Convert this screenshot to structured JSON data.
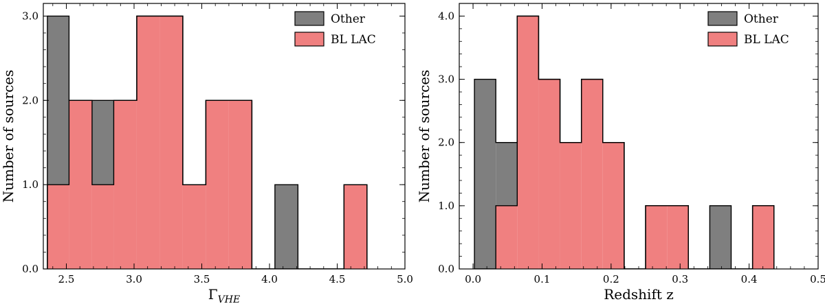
{
  "colors": {
    "other": "#7f7f7f",
    "bl_lac": "#f08080",
    "edge": "#000000"
  },
  "chart_data": [
    {
      "type": "bar",
      "histtype": "stacked-step-filled",
      "xlabel_base": "Γ",
      "xlabel_sub": "VHE",
      "ylabel": "Number of sources",
      "xlim": [
        2.33,
        5.0
      ],
      "ylim": [
        0,
        3.15
      ],
      "xticks": [
        2.5,
        3.0,
        3.5,
        4.0,
        4.5,
        5.0
      ],
      "xtick_labels": [
        "2.5",
        "3.0",
        "3.5",
        "4.0",
        "4.5",
        "5.0"
      ],
      "xminor_step": 0.1,
      "yticks": [
        0,
        1,
        2,
        3
      ],
      "ytick_labels": [
        "0.0",
        "1.0",
        "2.0",
        "3.0"
      ],
      "yminor_step": 0.2,
      "bin_edges": [
        2.36,
        2.52,
        2.69,
        2.85,
        3.02,
        3.19,
        3.36,
        3.53,
        3.7,
        3.87,
        4.04,
        4.21,
        4.38,
        4.55,
        4.72
      ],
      "legend": {
        "placement": "top-right",
        "entries": [
          "Other",
          "BL LAC"
        ]
      },
      "series": [
        {
          "name": "BL LAC",
          "values": [
            1,
            2,
            1,
            2,
            3,
            3,
            1,
            2,
            2,
            0,
            0,
            0,
            0,
            1
          ]
        },
        {
          "name": "Other",
          "values": [
            2,
            0,
            1,
            0,
            0,
            0,
            0,
            0,
            0,
            0,
            1,
            0,
            0,
            0
          ]
        }
      ]
    },
    {
      "type": "bar",
      "histtype": "stacked-step-filled",
      "xlabel_base": "Redshift z",
      "xlabel_sub": "",
      "ylabel": "Number of sources",
      "xlim": [
        -0.02,
        0.5
      ],
      "ylim": [
        0,
        4.2
      ],
      "xticks": [
        0.0,
        0.1,
        0.2,
        0.3,
        0.4,
        0.5
      ],
      "xtick_labels": [
        "0.0",
        "0.1",
        "0.2",
        "0.3",
        "0.4",
        "0.5"
      ],
      "xminor_step": 0.02,
      "yticks": [
        0,
        1,
        2,
        3,
        4
      ],
      "ytick_labels": [
        "0.0",
        "1.0",
        "2.0",
        "3.0",
        "4.0"
      ],
      "yminor_step": 0.2,
      "bin_edges": [
        0.002,
        0.033,
        0.064,
        0.095,
        0.126,
        0.157,
        0.188,
        0.219,
        0.25,
        0.281,
        0.312,
        0.343,
        0.374,
        0.405,
        0.436
      ],
      "legend": {
        "placement": "top-right",
        "entries": [
          "Other",
          "BL LAC"
        ]
      },
      "series": [
        {
          "name": "BL LAC",
          "values": [
            0,
            1,
            4,
            3,
            2,
            3,
            2,
            0,
            1,
            1,
            0,
            0,
            0,
            1
          ]
        },
        {
          "name": "Other",
          "values": [
            3,
            1,
            0,
            0,
            0,
            0,
            0,
            0,
            0,
            0,
            0,
            1,
            0,
            0
          ]
        }
      ]
    }
  ]
}
